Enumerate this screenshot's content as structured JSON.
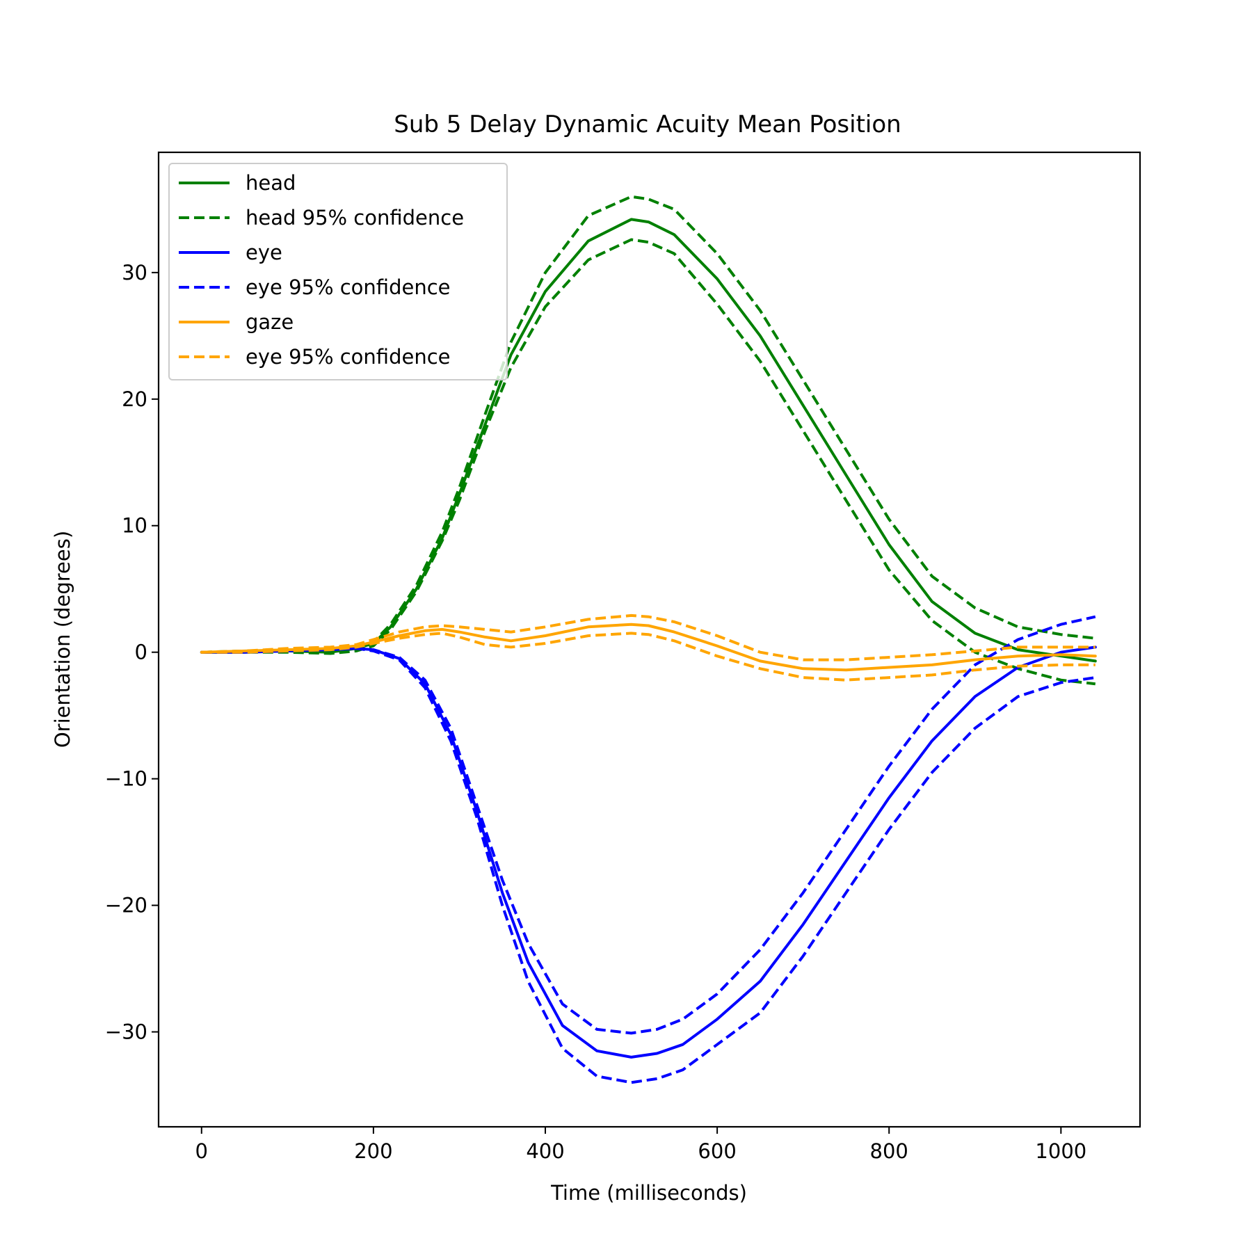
{
  "chart_data": {
    "type": "line",
    "title": "Sub 5 Delay Dynamic Acuity Mean Position",
    "xlabel": "Time (milliseconds)",
    "ylabel": "Orientation (degrees)",
    "xlim": [
      -50,
      1092
    ],
    "ylim": [
      -37.5,
      39.5
    ],
    "xticks": [
      0,
      200,
      400,
      600,
      800,
      1000
    ],
    "yticks": [
      -30,
      -20,
      -10,
      0,
      10,
      20,
      30
    ],
    "xtick_labels": [
      "0",
      "200",
      "400",
      "600",
      "800",
      "1000"
    ],
    "ytick_labels": [
      "−30",
      "−20",
      "−10",
      "0",
      "10",
      "20",
      "30"
    ],
    "grid": false,
    "legend_position": "upper-left",
    "series": [
      {
        "name": "head",
        "color": "#008000",
        "style": "solid",
        "x": [
          0,
          50,
          100,
          150,
          180,
          200,
          220,
          250,
          280,
          300,
          330,
          360,
          400,
          450,
          500,
          520,
          550,
          600,
          650,
          700,
          750,
          800,
          850,
          900,
          950,
          1000,
          1040
        ],
        "y": [
          0,
          0,
          0.1,
          0,
          0.3,
          0.7,
          2,
          5,
          9,
          12.5,
          18,
          23.5,
          28.5,
          32.5,
          34.2,
          34,
          33,
          29.5,
          25,
          19.5,
          14,
          8.5,
          4,
          1.5,
          0.2,
          -0.3,
          -0.7
        ]
      },
      {
        "name": "head 95% confidence",
        "color": "#008000",
        "style": "dashed",
        "x": [
          0,
          50,
          100,
          150,
          180,
          200,
          220,
          250,
          280,
          300,
          330,
          360,
          400,
          450,
          500,
          520,
          550,
          600,
          650,
          700,
          750,
          800,
          850,
          900,
          950,
          1000,
          1040
        ],
        "y": [
          0,
          0.1,
          0.2,
          0.2,
          0.4,
          0.8,
          2.2,
          5.3,
          9.5,
          13,
          18.8,
          24.5,
          30,
          34.5,
          36,
          35.8,
          35,
          31.5,
          27,
          21.5,
          16,
          10.5,
          6,
          3.5,
          2,
          1.4,
          1.1
        ]
      },
      {
        "name": "head 95% confidence (lower)",
        "color": "#008000",
        "style": "dashed",
        "x": [
          0,
          50,
          100,
          150,
          180,
          200,
          220,
          250,
          280,
          300,
          330,
          360,
          400,
          450,
          500,
          520,
          550,
          600,
          650,
          700,
          750,
          800,
          850,
          900,
          950,
          1000,
          1040
        ],
        "y": [
          0,
          0,
          0,
          -0.1,
          0.1,
          0.5,
          1.8,
          4.8,
          8.8,
          12,
          17.5,
          22.5,
          27.3,
          31,
          32.6,
          32.4,
          31.5,
          27.5,
          23,
          17.5,
          12,
          6.5,
          2.5,
          0,
          -1.3,
          -2.2,
          -2.5
        ]
      },
      {
        "name": "eye",
        "color": "#0000ff",
        "style": "solid",
        "x": [
          0,
          50,
          100,
          150,
          180,
          200,
          230,
          260,
          290,
          320,
          350,
          380,
          420,
          460,
          500,
          530,
          560,
          600,
          650,
          700,
          750,
          800,
          850,
          900,
          950,
          1000,
          1040
        ],
        "y": [
          0,
          0,
          0.1,
          0.2,
          0.3,
          0.2,
          -0.5,
          -2.5,
          -6.5,
          -12.5,
          -19,
          -24.5,
          -29.5,
          -31.5,
          -32,
          -31.7,
          -31,
          -29,
          -26,
          -21.5,
          -16.5,
          -11.5,
          -7,
          -3.5,
          -1.2,
          0,
          0.4
        ]
      },
      {
        "name": "eye 95% confidence",
        "color": "#0000ff",
        "style": "dashed",
        "x": [
          0,
          50,
          100,
          150,
          180,
          200,
          230,
          260,
          290,
          320,
          350,
          380,
          420,
          460,
          500,
          530,
          560,
          600,
          650,
          700,
          750,
          800,
          850,
          900,
          950,
          1000,
          1040
        ],
        "y": [
          0,
          0,
          0.1,
          0.2,
          0.3,
          0.2,
          -0.4,
          -2.2,
          -6,
          -12,
          -18,
          -23,
          -27.8,
          -29.8,
          -30.1,
          -29.8,
          -29,
          -27,
          -23.5,
          -19,
          -14,
          -9,
          -4.5,
          -1,
          1,
          2.2,
          2.8
        ]
      },
      {
        "name": "eye 95% confidence (lower)",
        "color": "#0000ff",
        "style": "dashed",
        "x": [
          0,
          50,
          100,
          150,
          180,
          200,
          230,
          260,
          290,
          320,
          350,
          380,
          420,
          460,
          500,
          530,
          560,
          600,
          650,
          700,
          750,
          800,
          850,
          900,
          950,
          1000,
          1040
        ],
        "y": [
          0,
          0,
          0.1,
          0.2,
          0.3,
          0.1,
          -0.6,
          -2.8,
          -7,
          -13,
          -20,
          -26,
          -31.3,
          -33.5,
          -34,
          -33.7,
          -33,
          -31,
          -28.5,
          -24,
          -19,
          -14,
          -9.5,
          -6,
          -3.5,
          -2.4,
          -2
        ]
      },
      {
        "name": "gaze",
        "color": "#ffa500",
        "style": "solid",
        "x": [
          0,
          50,
          100,
          150,
          180,
          200,
          230,
          260,
          280,
          300,
          330,
          360,
          400,
          450,
          500,
          520,
          550,
          600,
          650,
          700,
          750,
          800,
          850,
          900,
          950,
          1000,
          1040
        ],
        "y": [
          0,
          0.1,
          0.2,
          0.3,
          0.5,
          0.8,
          1.3,
          1.7,
          1.8,
          1.6,
          1.2,
          0.9,
          1.3,
          2,
          2.2,
          2.1,
          1.6,
          0.5,
          -0.7,
          -1.3,
          -1.4,
          -1.2,
          -1,
          -0.6,
          -0.3,
          -0.2,
          -0.3
        ]
      },
      {
        "name": "eye 95% confidence",
        "color": "#ffa500",
        "style": "dashed",
        "x": [
          0,
          50,
          100,
          150,
          180,
          200,
          230,
          260,
          280,
          300,
          330,
          360,
          400,
          450,
          500,
          520,
          550,
          600,
          650,
          700,
          750,
          800,
          850,
          900,
          950,
          1000,
          1040
        ],
        "y": [
          0,
          0.1,
          0.3,
          0.4,
          0.6,
          1,
          1.6,
          2,
          2.1,
          2,
          1.8,
          1.6,
          2,
          2.6,
          2.9,
          2.8,
          2.4,
          1.3,
          0,
          -0.6,
          -0.6,
          -0.4,
          -0.2,
          0.1,
          0.4,
          0.4,
          0.4
        ]
      },
      {
        "name": "eye 95% confidence (lower)",
        "color": "#ffa500",
        "style": "dashed",
        "x": [
          0,
          50,
          100,
          150,
          180,
          200,
          230,
          260,
          280,
          300,
          330,
          360,
          400,
          450,
          500,
          520,
          550,
          600,
          650,
          700,
          750,
          800,
          850,
          900,
          950,
          1000,
          1040
        ],
        "y": [
          0,
          0,
          0.1,
          0.2,
          0.4,
          0.7,
          1.1,
          1.4,
          1.5,
          1.2,
          0.6,
          0.4,
          0.7,
          1.3,
          1.5,
          1.4,
          0.9,
          -0.3,
          -1.3,
          -2,
          -2.2,
          -2,
          -1.8,
          -1.4,
          -1.1,
          -1,
          -1
        ]
      }
    ],
    "legend": [
      {
        "label": "head",
        "color": "#008000",
        "style": "solid"
      },
      {
        "label": "head 95% confidence",
        "color": "#008000",
        "style": "dashed"
      },
      {
        "label": "eye",
        "color": "#0000ff",
        "style": "solid"
      },
      {
        "label": "eye 95% confidence",
        "color": "#0000ff",
        "style": "dashed"
      },
      {
        "label": "gaze",
        "color": "#ffa500",
        "style": "solid"
      },
      {
        "label": "eye 95% confidence",
        "color": "#ffa500",
        "style": "dashed"
      }
    ]
  }
}
